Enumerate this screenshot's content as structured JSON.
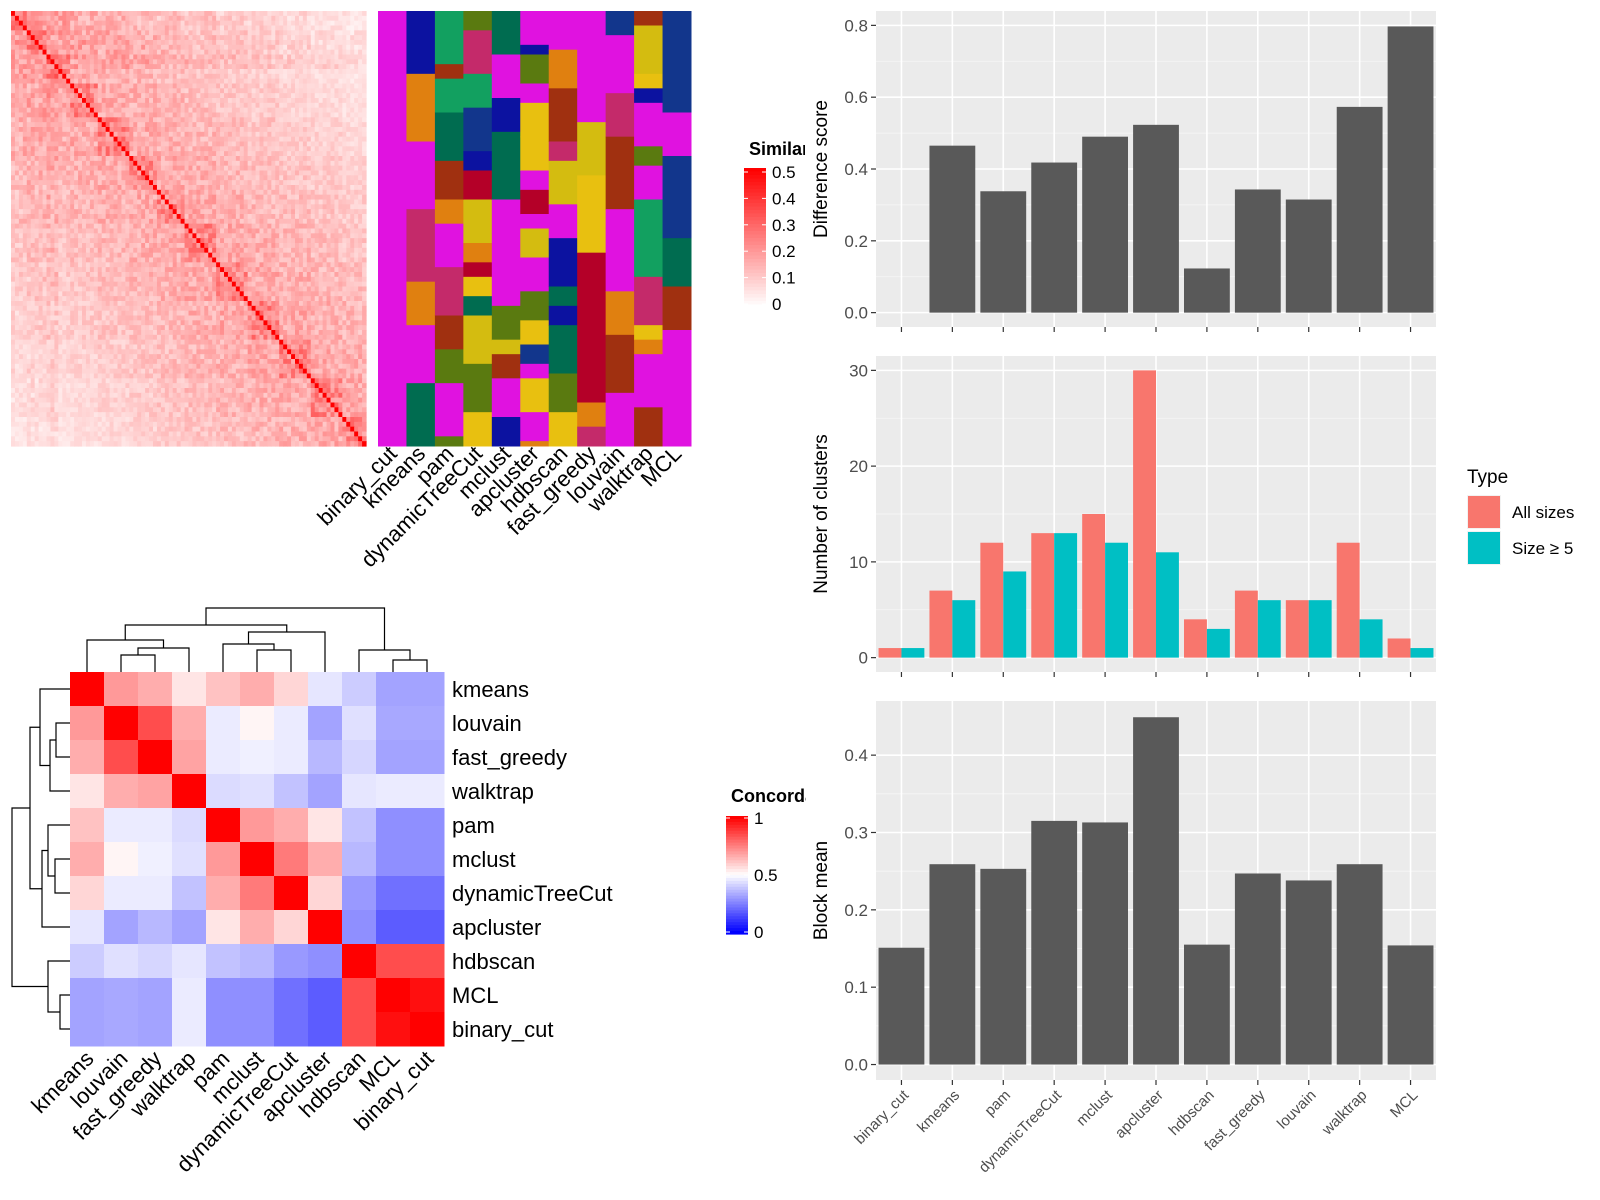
{
  "methods_order_top": [
    "binary_cut",
    "kmeans",
    "pam",
    "dynamicTreeCut",
    "mclust",
    "apcluster",
    "hdbscan",
    "fast_greedy",
    "louvain",
    "walktrap",
    "MCL"
  ],
  "similarity_heatmap": {
    "legend_title": "Similarity",
    "legend_ticks": [
      "0.5",
      "0.4",
      "0.3",
      "0.2",
      "0.1",
      "0"
    ],
    "color_high": "#ff0000",
    "color_low": "#ffffff"
  },
  "cluster_colors": [
    "#e012e0",
    "#d4bc10",
    "#12a060",
    "#a03010",
    "#e8c010",
    "#006c50",
    "#12368c",
    "#b40028",
    "#5a7a10",
    "#c42a6a",
    "#e08010",
    "#0c12a0"
  ],
  "concordance_heatmap": {
    "legend_title": "Concordance",
    "legend_ticks": [
      "1",
      "0.5",
      "0"
    ],
    "row_labels": [
      "kmeans",
      "louvain",
      "fast_greedy",
      "walktrap",
      "pam",
      "mclust",
      "dynamicTreeCut",
      "apcluster",
      "hdbscan",
      "MCL",
      "binary_cut"
    ],
    "col_labels": [
      "kmeans",
      "louvain",
      "fast_greedy",
      "walktrap",
      "pam",
      "mclust",
      "dynamicTreeCut",
      "apcluster",
      "hdbscan",
      "MCL",
      "binary_cut"
    ],
    "matrix": [
      [
        1.0,
        0.7,
        0.66,
        0.55,
        0.62,
        0.66,
        0.58,
        0.45,
        0.4,
        0.32,
        0.32
      ],
      [
        0.7,
        1.0,
        0.85,
        0.66,
        0.46,
        0.52,
        0.46,
        0.32,
        0.44,
        0.33,
        0.33
      ],
      [
        0.66,
        0.85,
        1.0,
        0.68,
        0.46,
        0.47,
        0.46,
        0.36,
        0.42,
        0.32,
        0.32
      ],
      [
        0.55,
        0.66,
        0.68,
        1.0,
        0.43,
        0.44,
        0.38,
        0.32,
        0.45,
        0.46,
        0.46
      ],
      [
        0.62,
        0.46,
        0.46,
        0.43,
        1.0,
        0.7,
        0.66,
        0.55,
        0.38,
        0.28,
        0.28
      ],
      [
        0.66,
        0.52,
        0.47,
        0.44,
        0.7,
        1.0,
        0.76,
        0.66,
        0.36,
        0.28,
        0.28
      ],
      [
        0.58,
        0.46,
        0.46,
        0.38,
        0.66,
        0.76,
        1.0,
        0.58,
        0.3,
        0.22,
        0.22
      ],
      [
        0.45,
        0.32,
        0.36,
        0.32,
        0.55,
        0.66,
        0.58,
        1.0,
        0.28,
        0.18,
        0.18
      ],
      [
        0.4,
        0.44,
        0.42,
        0.45,
        0.38,
        0.36,
        0.3,
        0.28,
        1.0,
        0.85,
        0.85
      ],
      [
        0.32,
        0.33,
        0.32,
        0.46,
        0.28,
        0.28,
        0.22,
        0.18,
        0.85,
        1.0,
        0.97
      ],
      [
        0.32,
        0.33,
        0.32,
        0.46,
        0.28,
        0.28,
        0.22,
        0.18,
        0.85,
        0.97,
        1.0
      ]
    ]
  },
  "chart_data": [
    {
      "type": "bar",
      "categories": [
        "binary_cut",
        "kmeans",
        "pam",
        "dynamicTreeCut",
        "mclust",
        "apcluster",
        "hdbscan",
        "fast_greedy",
        "louvain",
        "walktrap",
        "MCL"
      ],
      "values": [
        0.0,
        0.465,
        0.338,
        0.418,
        0.49,
        0.523,
        0.123,
        0.343,
        0.315,
        0.573,
        0.797
      ],
      "ylabel": "Difference score",
      "ylim": [
        -0.04,
        0.84
      ],
      "yticks": [
        0.0,
        0.2,
        0.4,
        0.6,
        0.8
      ],
      "ytick_labels": [
        "0.0",
        "0.2",
        "0.4",
        "0.6",
        "0.8"
      ],
      "bar_color": "#595959",
      "background": "#ebebeb",
      "grid": true
    },
    {
      "type": "bar",
      "categories": [
        "binary_cut",
        "kmeans",
        "pam",
        "dynamicTreeCut",
        "mclust",
        "apcluster",
        "hdbscan",
        "fast_greedy",
        "louvain",
        "walktrap",
        "MCL"
      ],
      "series": [
        {
          "name": "All sizes",
          "values": [
            1,
            7,
            12,
            13,
            15,
            30,
            4,
            7,
            6,
            12,
            2
          ],
          "color": "#f8766d"
        },
        {
          "name": "Size ≥ 5",
          "values": [
            1,
            6,
            9,
            13,
            12,
            11,
            3,
            6,
            6,
            4,
            1
          ],
          "color": "#00bfc4"
        }
      ],
      "ylabel": "Number of clusters",
      "ylim": [
        -1.5,
        31.5
      ],
      "yticks": [
        0,
        10,
        20,
        30
      ],
      "ytick_labels": [
        "0",
        "10",
        "20",
        "30"
      ],
      "legend_title": "Type",
      "legend_position": "right",
      "background": "#ebebeb",
      "grid": true
    },
    {
      "type": "bar",
      "categories": [
        "binary_cut",
        "kmeans",
        "pam",
        "dynamicTreeCut",
        "mclust",
        "apcluster",
        "hdbscan",
        "fast_greedy",
        "louvain",
        "walktrap",
        "MCL"
      ],
      "values": [
        0.151,
        0.259,
        0.253,
        0.315,
        0.313,
        0.449,
        0.155,
        0.247,
        0.238,
        0.259,
        0.154
      ],
      "ylabel": "Block mean",
      "ylim": [
        -0.02,
        0.47
      ],
      "yticks": [
        0.0,
        0.1,
        0.2,
        0.3,
        0.4
      ],
      "ytick_labels": [
        "0.0",
        "0.1",
        "0.2",
        "0.3",
        "0.4"
      ],
      "bar_color": "#595959",
      "background": "#ebebeb",
      "grid": true
    }
  ]
}
